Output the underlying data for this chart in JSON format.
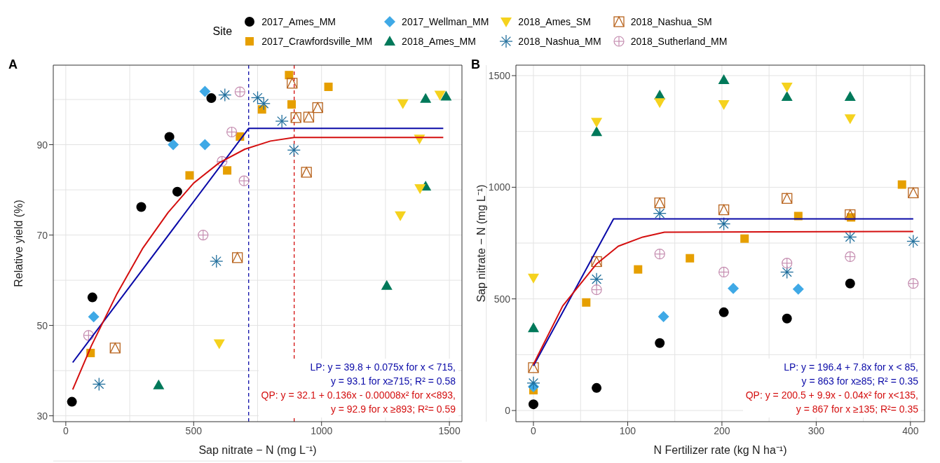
{
  "chart_data": [
    {
      "type": "scatter",
      "title": "A",
      "xlabel": "Sap nitrate − N (mg L⁻¹)",
      "ylabel": "Relative yield (%)",
      "xlim": [
        -49,
        1549
      ],
      "ylim": [
        28.7,
        107.6
      ],
      "xticks": [
        0,
        500,
        1000,
        1500
      ],
      "yticks": [
        30,
        50,
        70,
        90
      ],
      "grid": true,
      "legend": "top",
      "legend_title": "Site",
      "series": [
        {
          "name": "2017_Ames_MM",
          "color": "#000000",
          "marker": "circle",
          "x": [
            24,
            104,
            295,
            436,
            405,
            569
          ],
          "values": [
            33.1,
            56.2,
            76.2,
            79.6,
            91.7,
            100.3
          ]
        },
        {
          "name": "2017_Crawfordsville_MM",
          "color": "#e69f00",
          "marker": "square",
          "x": [
            97,
            484,
            631,
            681,
            767,
            873,
            883,
            1027
          ],
          "values": [
            43.9,
            83.2,
            84.3,
            91.8,
            97.8,
            105.4,
            98.9,
            102.8
          ]
        },
        {
          "name": "2017_Wellman_MM",
          "color": "#3fa9e6",
          "marker": "diamond",
          "x": [
            109,
            420,
            544,
            544
          ],
          "values": [
            51.9,
            90,
            90,
            101.8
          ]
        },
        {
          "name": "2018_Ames_MM",
          "color": "#00795a",
          "marker": "triangle",
          "x": [
            363,
            1255,
            1407,
            1487,
            1407
          ],
          "values": [
            36.8,
            58.8,
            100.2,
            100.7,
            80.8
          ]
        },
        {
          "name": "2018_Ames_SM",
          "color": "#f5d21e",
          "marker": "triangle-down",
          "x": [
            600,
            1318,
            1383,
            1385,
            1308,
            1463
          ],
          "values": [
            46,
            99.1,
            91.3,
            80.3,
            74.3,
            101
          ]
        },
        {
          "name": "2018_Nashua_MM",
          "color": "#1f6e9c",
          "marker": "cross",
          "x": [
            130,
            589,
            622,
            750,
            774,
            845,
            892
          ],
          "values": [
            37,
            64.2,
            101,
            100.4,
            99.1,
            95.2,
            88.8
          ]
        },
        {
          "name": "2018_Nashua_SM",
          "color": "#b8641e",
          "x": [
            193,
            671,
            885,
            900,
            950,
            985,
            941
          ],
          "values": [
            45,
            65,
            103.6,
            96,
            96.1,
            98.2,
            83.9
          ]
        },
        {
          "name": "2018_Sutherland_MM",
          "color": "#c58db0",
          "marker": "circle-cross",
          "x": [
            89,
            537,
            611,
            649,
            681,
            697
          ],
          "values": [
            47.8,
            70,
            86.3,
            92.8,
            101.7,
            82
          ]
        },
        {
          "type": "line",
          "color": "#0a0aa8",
          "x": [
            27,
            715,
            1476
          ],
          "values": [
            41.8,
            93.6,
            93.6
          ]
        },
        {
          "type": "line",
          "color": "#d40f0f",
          "x": [
            27,
            100,
            200,
            300,
            400,
            500,
            600,
            700,
            800,
            893,
            1476
          ],
          "values": [
            35.8,
            45.5,
            57,
            67,
            75,
            81.5,
            86,
            89,
            90.8,
            91.6,
            91.6
          ]
        }
      ],
      "ref_lines": [
        {
          "axis": "x",
          "value": 715,
          "color": "#0a0aa8",
          "line_style": "dashed"
        },
        {
          "axis": "x",
          "value": 893,
          "color": "#d40f0f",
          "line_style": "dashed"
        }
      ],
      "annotations": [
        "LP: y = 39.8 + 0.075x for x < 715,",
        "y = 93.1 for x≥715; R² = 0.58",
        "QP: y = 32.1 + 0.136x - 0.00008x² for x<893,",
        "y = 92.9 for x ≥893; R²= 0.59"
      ]
    },
    {
      "type": "scatter",
      "title": "B",
      "xlabel": "N Fertilizer rate (kg N ha⁻¹)",
      "ylabel": "Sap nitrate − N (mg L⁻¹)",
      "xlim": [
        -18.6,
        415
      ],
      "ylim": [
        -50,
        1547
      ],
      "xticks": [
        0,
        100,
        200,
        300,
        400
      ],
      "yticks": [
        0,
        500,
        1000,
        1500
      ],
      "grid": true,
      "series": [
        {
          "name": "2017_Ames_MM",
          "color": "#000000",
          "marker": "circle",
          "x": [
            0,
            67,
            134,
            202,
            269,
            336
          ],
          "values": [
            28,
            101,
            302,
            440,
            412,
            569
          ]
        },
        {
          "name": "2017_Crawfordsville_MM",
          "color": "#e69f00",
          "marker": "square",
          "x": [
            0,
            56,
            111,
            166,
            224,
            281,
            337,
            391
          ],
          "values": [
            91,
            484,
            632,
            682,
            770,
            871,
            865,
            1012
          ]
        },
        {
          "name": "2017_Wellman_MM",
          "color": "#3fa9e6",
          "marker": "diamond",
          "x": [
            0,
            138,
            212,
            281
          ],
          "values": [
            107,
            421,
            547,
            544
          ]
        },
        {
          "name": "2018_Ames_MM",
          "color": "#00795a",
          "marker": "triangle",
          "x": [
            0,
            67,
            134,
            202,
            269,
            336
          ],
          "values": [
            370,
            1248,
            1412,
            1481,
            1406,
            1406
          ]
        },
        {
          "name": "2018_Ames_SM",
          "color": "#f5d21e",
          "marker": "triangle-down",
          "x": [
            0,
            67,
            134,
            202,
            269,
            336
          ],
          "values": [
            594,
            1292,
            1380,
            1371,
            1450,
            1308
          ]
        },
        {
          "name": "2018_Nashua_MM",
          "color": "#1f6e9c",
          "marker": "cross",
          "x": [
            0,
            67,
            134,
            202,
            269,
            336,
            403
          ],
          "values": [
            123,
            588,
            883,
            836,
            620,
            777,
            758
          ]
        },
        {
          "name": "2018_Nashua_SM",
          "color": "#b8641e",
          "x": [
            0,
            67,
            134,
            202,
            269,
            336,
            403
          ],
          "values": [
            192,
            667,
            930,
            899,
            950,
            877,
            975
          ]
        },
        {
          "name": "2018_Sutherland_MM",
          "color": "#c58db0",
          "marker": "circle-cross",
          "x": [
            67,
            134,
            202,
            269,
            336,
            403
          ],
          "values": [
            541,
            701,
            620,
            660,
            689,
            569
          ]
        },
        {
          "type": "line",
          "color": "#0a0aa8",
          "x": [
            0,
            85,
            403
          ],
          "values": [
            200,
            858,
            858
          ]
        },
        {
          "type": "line",
          "color": "#d40f0f",
          "x": [
            0,
            31,
            67,
            90,
            116,
            139,
            403
          ],
          "values": [
            207,
            468,
            657,
            736,
            777,
            799,
            802
          ]
        }
      ],
      "annotations": [
        "LP: y = 196.4 + 7.8x for x < 85,",
        "y = 863 for x≥85; R² = 0.35",
        "QP: y = 200.5 + 9.9x - 0.04x² for x<135,",
        "y = 867 for x ≥135; R²= 0.35"
      ]
    }
  ]
}
